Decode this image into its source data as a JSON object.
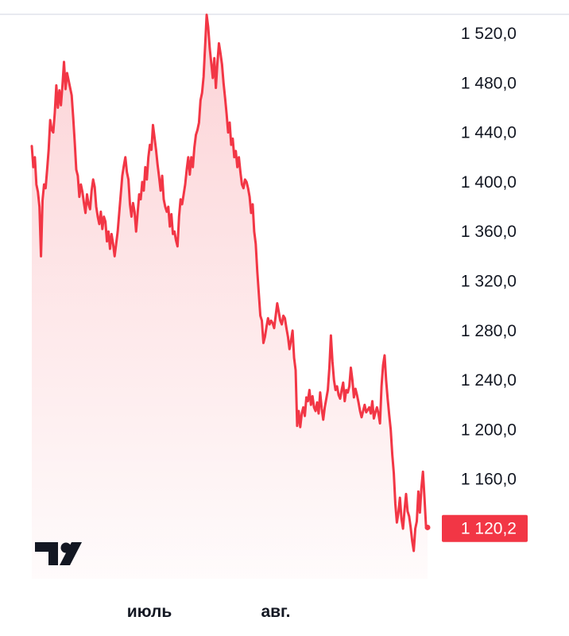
{
  "chart_data": {
    "type": "area",
    "y_tick_labels": [
      "1 520,0",
      "1 480,0",
      "1 440,0",
      "1 400,0",
      "1 360,0",
      "1 320,0",
      "1 280,0",
      "1 240,0",
      "1 200,0",
      "1 160,0"
    ],
    "y_ticks": [
      1520,
      1480,
      1440,
      1400,
      1360,
      1320,
      1280,
      1240,
      1200,
      1160
    ],
    "x_tick_labels": [
      "июль",
      "авг."
    ],
    "ylim": [
      1098,
      1542
    ],
    "last_price": 1120.2,
    "last_price_label": "1 120,2",
    "line_color": "#f23645",
    "fill_color": "#f23645",
    "grid": false,
    "values": [
      1429,
      1412,
      1420,
      1398,
      1392,
      1380,
      1340,
      1385,
      1398,
      1395,
      1410,
      1426,
      1450,
      1442,
      1440,
      1456,
      1478,
      1460,
      1474,
      1462,
      1478,
      1497,
      1475,
      1488,
      1482,
      1476,
      1470,
      1452,
      1432,
      1410,
      1405,
      1388,
      1398,
      1392,
      1383,
      1375,
      1390,
      1382,
      1378,
      1393,
      1402,
      1396,
      1380,
      1372,
      1366,
      1376,
      1362,
      1372,
      1368,
      1352,
      1360,
      1346,
      1358,
      1350,
      1340,
      1350,
      1360,
      1375,
      1390,
      1405,
      1413,
      1420,
      1408,
      1402,
      1382,
      1372,
      1383,
      1376,
      1360,
      1375,
      1390,
      1386,
      1400,
      1393,
      1412,
      1402,
      1420,
      1430,
      1426,
      1446,
      1436,
      1426,
      1414,
      1404,
      1393,
      1405,
      1386,
      1380,
      1376,
      1380,
      1364,
      1374,
      1358,
      1360,
      1353,
      1348,
      1372,
      1386,
      1382,
      1390,
      1398,
      1410,
      1420,
      1406,
      1420,
      1412,
      1428,
      1438,
      1442,
      1448,
      1466,
      1472,
      1485,
      1510,
      1535,
      1525,
      1508,
      1496,
      1484,
      1500,
      1476,
      1496,
      1512,
      1504,
      1495,
      1480,
      1468,
      1455,
      1440,
      1448,
      1430,
      1435,
      1420,
      1425,
      1412,
      1420,
      1408,
      1398,
      1395,
      1402,
      1400,
      1395,
      1388,
      1375,
      1382,
      1360,
      1350,
      1328,
      1310,
      1292,
      1288,
      1270,
      1275,
      1283,
      1290,
      1285,
      1288,
      1286,
      1282,
      1292,
      1302,
      1295,
      1288,
      1285,
      1292,
      1290,
      1282,
      1275,
      1265,
      1272,
      1280,
      1258,
      1248,
      1203,
      1215,
      1202,
      1213,
      1218,
      1211,
      1226,
      1223,
      1232,
      1220,
      1227,
      1218,
      1215,
      1222,
      1213,
      1230,
      1217,
      1208,
      1218,
      1225,
      1232,
      1250,
      1276,
      1255,
      1240,
      1232,
      1235,
      1228,
      1225,
      1232,
      1238,
      1223,
      1232,
      1230,
      1235,
      1250,
      1240,
      1226,
      1233,
      1228,
      1222,
      1215,
      1210,
      1215,
      1220,
      1214,
      1216,
      1218,
      1213,
      1223,
      1209,
      1214,
      1218,
      1213,
      1205,
      1235,
      1252,
      1260,
      1240,
      1225,
      1212,
      1200,
      1180,
      1165,
      1140,
      1125,
      1133,
      1145,
      1128,
      1120,
      1135,
      1148,
      1134,
      1130,
      1121,
      1110,
      1102,
      1120,
      1126,
      1150,
      1133,
      1153,
      1166,
      1145,
      1122,
      1121
    ]
  }
}
